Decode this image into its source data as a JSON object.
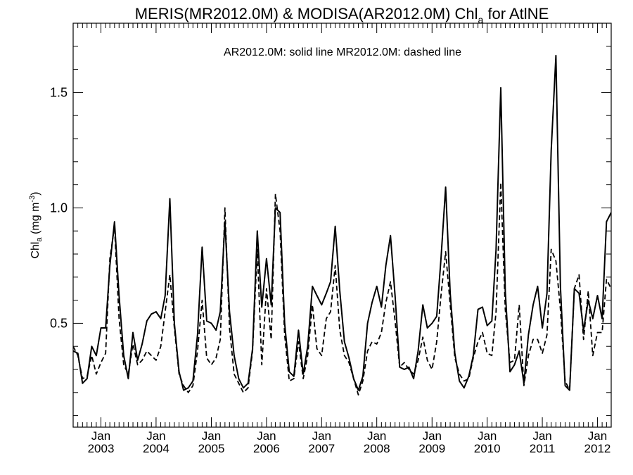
{
  "chart_data": {
    "type": "line",
    "title": "MERIS(MR2012.0M) & MODISA(AR2012.0M)  Chl",
    "title_sub": "a",
    "title_suffix": " for AtlNE",
    "annotation": "AR2012.0M: solid line   MR2012.0M: dashed line",
    "ylabel_main": "Chl",
    "ylabel_sub": "a",
    "ylabel_unit": " (mg m",
    "ylabel_sup": "-3",
    "ylabel_close": ")",
    "xlim": [
      "2002-07-15",
      "2012-04-15"
    ],
    "ylim": [
      0.05,
      1.8
    ],
    "yticks": [
      {
        "value": 0.5,
        "label": "0.5"
      },
      {
        "value": 1.0,
        "label": "1.0"
      },
      {
        "value": 1.5,
        "label": "1.5"
      }
    ],
    "xticks": [
      {
        "date": "2003-01-15",
        "month": "Jan",
        "year": "2003"
      },
      {
        "date": "2004-01-15",
        "month": "Jan",
        "year": "2004"
      },
      {
        "date": "2005-01-15",
        "month": "Jan",
        "year": "2005"
      },
      {
        "date": "2006-01-15",
        "month": "Jan",
        "year": "2006"
      },
      {
        "date": "2007-01-15",
        "month": "Jan",
        "year": "2007"
      },
      {
        "date": "2008-01-15",
        "month": "Jan",
        "year": "2008"
      },
      {
        "date": "2009-01-15",
        "month": "Jan",
        "year": "2009"
      },
      {
        "date": "2010-01-15",
        "month": "Jan",
        "year": "2010"
      },
      {
        "date": "2011-01-15",
        "month": "Jan",
        "year": "2011"
      },
      {
        "date": "2012-01-15",
        "month": "Jan",
        "year": "2012"
      }
    ],
    "x_start": "2002-07",
    "series": [
      {
        "name": "AR2012.0M",
        "style": "solid",
        "values": [
          0.38,
          0.37,
          0.24,
          0.26,
          0.4,
          0.36,
          0.48,
          0.48,
          0.75,
          0.94,
          0.62,
          0.36,
          0.26,
          0.46,
          0.34,
          0.41,
          0.51,
          0.54,
          0.55,
          0.52,
          0.62,
          1.04,
          0.5,
          0.29,
          0.21,
          0.22,
          0.25,
          0.45,
          0.83,
          0.51,
          0.5,
          0.47,
          0.55,
          0.94,
          0.55,
          0.36,
          0.26,
          0.22,
          0.24,
          0.39,
          0.9,
          0.57,
          0.78,
          0.58,
          1.0,
          0.98,
          0.5,
          0.29,
          0.27,
          0.47,
          0.28,
          0.4,
          0.66,
          0.62,
          0.58,
          0.63,
          0.68,
          0.92,
          0.64,
          0.42,
          0.35,
          0.26,
          0.21,
          0.27,
          0.5,
          0.59,
          0.66,
          0.57,
          0.75,
          0.88,
          0.62,
          0.31,
          0.3,
          0.31,
          0.26,
          0.38,
          0.58,
          0.48,
          0.5,
          0.53,
          0.78,
          1.09,
          0.63,
          0.37,
          0.25,
          0.22,
          0.27,
          0.36,
          0.56,
          0.57,
          0.49,
          0.51,
          0.82,
          1.52,
          0.64,
          0.29,
          0.32,
          0.38,
          0.24,
          0.45,
          0.58,
          0.66,
          0.48,
          0.63,
          1.25,
          1.66,
          0.66,
          0.23,
          0.21,
          0.65,
          0.63,
          0.47,
          0.6,
          0.52,
          0.62,
          0.52,
          0.94,
          0.98
        ]
      },
      {
        "name": "MR2012.0M",
        "style": "dashed",
        "values": [
          0.4,
          0.36,
          0.26,
          0.27,
          0.36,
          0.28,
          0.33,
          0.37,
          0.78,
          0.92,
          0.52,
          0.32,
          0.28,
          0.41,
          0.32,
          0.34,
          0.38,
          0.36,
          0.34,
          0.4,
          0.55,
          0.71,
          0.48,
          0.28,
          0.23,
          0.2,
          0.23,
          0.38,
          0.6,
          0.35,
          0.32,
          0.35,
          0.43,
          1.0,
          0.48,
          0.28,
          0.24,
          0.2,
          0.22,
          0.38,
          0.82,
          0.32,
          0.65,
          0.43,
          1.06,
          0.9,
          0.45,
          0.25,
          0.26,
          0.42,
          0.26,
          0.36,
          0.58,
          0.39,
          0.36,
          0.52,
          0.55,
          0.75,
          0.47,
          0.36,
          0.33,
          0.26,
          0.19,
          0.25,
          0.38,
          0.42,
          0.41,
          0.46,
          0.59,
          0.68,
          0.51,
          0.31,
          0.33,
          0.3,
          0.28,
          0.34,
          0.44,
          0.34,
          0.3,
          0.42,
          0.62,
          0.81,
          0.58,
          0.35,
          0.28,
          0.25,
          0.26,
          0.35,
          0.42,
          0.46,
          0.37,
          0.36,
          0.55,
          1.11,
          0.56,
          0.33,
          0.34,
          0.58,
          0.23,
          0.36,
          0.43,
          0.43,
          0.37,
          0.45,
          0.82,
          0.77,
          0.56,
          0.25,
          0.21,
          0.65,
          0.71,
          0.43,
          0.64,
          0.36,
          0.46,
          0.46,
          0.69,
          0.65
        ]
      }
    ]
  }
}
